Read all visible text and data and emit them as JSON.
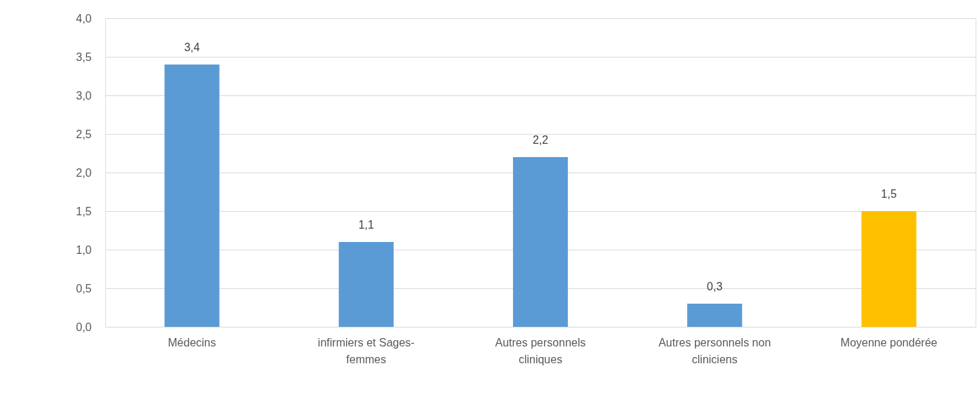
{
  "chart_data": {
    "type": "bar",
    "categories": [
      "Médecins",
      "infirmiers et Sages-femmes",
      "Autres personnels cliniques",
      "Autres personnels non cliniciens",
      "Moyenne pondérée"
    ],
    "values": [
      3.4,
      1.1,
      2.2,
      0.3,
      1.5
    ],
    "colors": [
      "#5b9bd5",
      "#5b9bd5",
      "#5b9bd5",
      "#5b9bd5",
      "#ffc000"
    ],
    "value_labels": [
      "3,4",
      "1,1",
      "2,2",
      "0,3",
      "1,5"
    ],
    "ylim": [
      0,
      4
    ],
    "yticks": [
      {
        "value": 0,
        "label": "0,0"
      },
      {
        "value": 0.5,
        "label": "0,5"
      },
      {
        "value": 1,
        "label": "1,0"
      },
      {
        "value": 1.5,
        "label": "1,5"
      },
      {
        "value": 2,
        "label": "2,0"
      },
      {
        "value": 2.5,
        "label": "2,5"
      },
      {
        "value": 3,
        "label": "3,0"
      },
      {
        "value": 3.5,
        "label": "3,5"
      },
      {
        "value": 4,
        "label": "4,0"
      }
    ],
    "grid": "y"
  }
}
